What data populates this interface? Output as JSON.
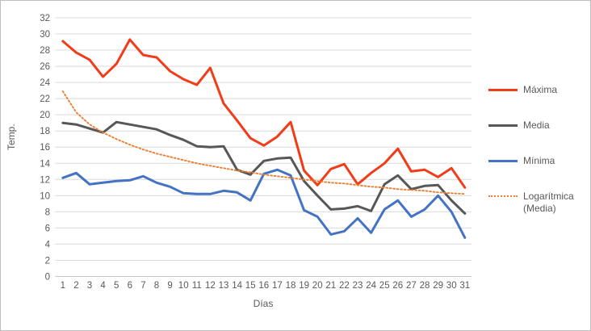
{
  "chart_data": {
    "type": "line",
    "title": "",
    "xlabel": "Días",
    "ylabel": "Temp.",
    "x_ticks": [
      1,
      2,
      3,
      4,
      5,
      6,
      7,
      8,
      9,
      10,
      11,
      12,
      13,
      14,
      15,
      16,
      17,
      18,
      19,
      20,
      21,
      22,
      23,
      24,
      25,
      26,
      27,
      28,
      29,
      30,
      31
    ],
    "y_ticks": [
      0,
      2,
      4,
      6,
      8,
      10,
      12,
      14,
      16,
      18,
      20,
      22,
      24,
      26,
      28,
      30,
      32
    ],
    "ylim": [
      0,
      32
    ],
    "grid": true,
    "legend_position": "right",
    "background_color": "#FFFFFF",
    "axis_text_color": "#595959",
    "gridline_color": "#D9D9D9",
    "series": [
      {
        "name": "Máxima",
        "color": "#F23C19",
        "style": "solid",
        "values": [
          29.1,
          27.7,
          26.8,
          24.7,
          26.3,
          29.3,
          27.4,
          27.1,
          25.4,
          24.4,
          23.7,
          25.8,
          21.4,
          19.3,
          17.1,
          16.2,
          17.3,
          19.1,
          13.1,
          11.3,
          13.3,
          13.9,
          11.4,
          12.8,
          14.0,
          15.8,
          13.0,
          13.2,
          12.3,
          13.4,
          11.0
        ]
      },
      {
        "name": "Media",
        "color": "#575757",
        "style": "solid",
        "values": [
          19.0,
          18.8,
          18.3,
          17.8,
          19.1,
          18.8,
          18.5,
          18.2,
          17.5,
          16.9,
          16.1,
          16.0,
          16.1,
          13.2,
          12.6,
          14.3,
          14.6,
          14.7,
          11.8,
          10.0,
          8.3,
          8.4,
          8.7,
          8.1,
          11.4,
          12.5,
          10.8,
          11.2,
          11.3,
          9.4,
          7.8
        ]
      },
      {
        "name": "Mínima",
        "color": "#4472C4",
        "style": "solid",
        "values": [
          12.2,
          12.8,
          11.4,
          11.6,
          11.8,
          11.9,
          12.4,
          11.6,
          11.1,
          10.3,
          10.2,
          10.2,
          10.6,
          10.4,
          9.4,
          12.7,
          13.2,
          12.5,
          8.2,
          7.4,
          5.2,
          5.6,
          7.2,
          5.4,
          8.3,
          9.4,
          7.4,
          8.3,
          10.0,
          8.0,
          4.8
        ]
      },
      {
        "name": "Logarítmica (Media)",
        "color": "#ED7D31",
        "style": "dotted",
        "kind": "trendline",
        "trend_of": "Media",
        "values": [
          22.9,
          20.3,
          18.8,
          17.8,
          17.0,
          16.3,
          15.7,
          15.2,
          14.8,
          14.4,
          14.0,
          13.7,
          13.4,
          13.1,
          12.9,
          12.6,
          12.4,
          12.2,
          12.0,
          11.8,
          11.6,
          11.5,
          11.3,
          11.1,
          11.0,
          10.8,
          10.7,
          10.6,
          10.4,
          10.3,
          10.2
        ]
      }
    ]
  }
}
